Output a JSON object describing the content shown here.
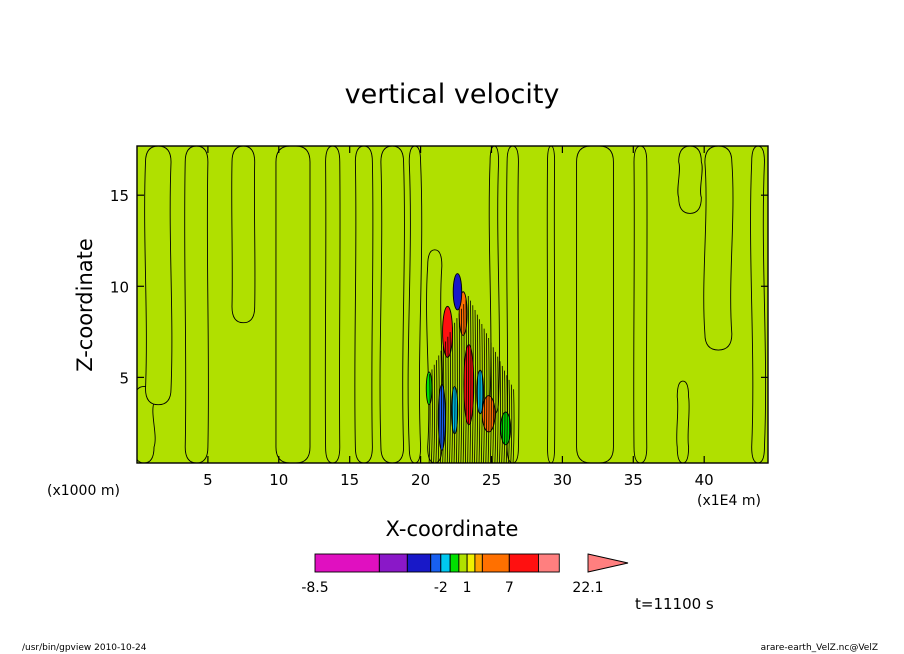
{
  "chart_data": {
    "type": "heatmap",
    "title": "vertical velocity",
    "xlabel": "X-coordinate",
    "ylabel": "Z-coordinate",
    "x_multiplier": "(x1000 m)",
    "x_tick_multiplier": "(x1E4 m)",
    "xlim": [
      0,
      44.5
    ],
    "ylim": [
      0.3,
      17.7
    ],
    "x_ticks": [
      5,
      10,
      15,
      20,
      25,
      30,
      35,
      40
    ],
    "y_ticks": [
      5,
      10,
      15
    ],
    "colorbar": {
      "levels": [
        -8.5,
        -6.8,
        -5.0,
        -3.0,
        -2.0,
        -1.0,
        0.0,
        1.0,
        2.0,
        3.0,
        7.0,
        12.0,
        16.0,
        22.1
      ],
      "colors": [
        "#e010c0",
        "#8a18c8",
        "#1818c8",
        "#1860f0",
        "#00c8f0",
        "#00e000",
        "#b0e000",
        "#f0f000",
        "#ffa000",
        "#ff7000",
        "#ff1010",
        "#ff7f7f"
      ],
      "labels": [
        "-8.5",
        "-2",
        "1",
        "7",
        "22.1"
      ],
      "label_values": [
        -8.5,
        -2,
        1,
        7,
        22.1
      ]
    },
    "field": {
      "background_value": 0.0,
      "positive_bands": [
        {
          "x": 0.5,
          "z0": 0.3,
          "z1": 4.5,
          "w": 1.4
        },
        {
          "x": 1.5,
          "z0": 3.5,
          "z1": 17.7,
          "w": 1.8
        },
        {
          "x": 4.2,
          "z0": 0.3,
          "z1": 17.7,
          "w": 1.6
        },
        {
          "x": 7.5,
          "z0": 8.0,
          "z1": 17.7,
          "w": 1.6
        },
        {
          "x": 11.0,
          "z0": 0.3,
          "z1": 17.7,
          "w": 2.4
        },
        {
          "x": 13.8,
          "z0": 0.3,
          "z1": 17.7,
          "w": 1.0
        },
        {
          "x": 16.0,
          "z0": 0.3,
          "z1": 17.7,
          "w": 1.2
        },
        {
          "x": 18.0,
          "z0": 0.3,
          "z1": 17.7,
          "w": 1.6
        },
        {
          "x": 19.6,
          "z0": 0.3,
          "z1": 17.7,
          "w": 0.8
        },
        {
          "x": 21.0,
          "z0": 0.3,
          "z1": 12.0,
          "w": 1.0
        },
        {
          "x": 25.2,
          "z0": 3.0,
          "z1": 17.7,
          "w": 0.6
        },
        {
          "x": 26.5,
          "z0": 0.3,
          "z1": 17.7,
          "w": 0.8
        },
        {
          "x": 29.2,
          "z0": 0.3,
          "z1": 17.7,
          "w": 0.5
        },
        {
          "x": 32.3,
          "z0": 0.3,
          "z1": 17.7,
          "w": 2.6
        },
        {
          "x": 35.5,
          "z0": 0.3,
          "z1": 17.7,
          "w": 0.9
        },
        {
          "x": 38.5,
          "z0": 0.3,
          "z1": 4.8,
          "w": 0.8
        },
        {
          "x": 39.0,
          "z0": 14.0,
          "z1": 17.7,
          "w": 1.6
        },
        {
          "x": 41.0,
          "z0": 6.5,
          "z1": 17.7,
          "w": 1.9
        },
        {
          "x": 43.8,
          "z0": 0.3,
          "z1": 17.7,
          "w": 0.9
        }
      ],
      "storm_cells": [
        {
          "x": 21.9,
          "z": 7.5,
          "dx": 0.35,
          "dz": 1.4,
          "v": 7.0
        },
        {
          "x": 23.4,
          "z": 4.6,
          "dx": 0.35,
          "dz": 2.2,
          "v": 7.0
        },
        {
          "x": 23.0,
          "z": 8.5,
          "dx": 0.28,
          "dz": 1.2,
          "v": 3.0
        },
        {
          "x": 24.8,
          "z": 3.0,
          "dx": 0.45,
          "dz": 1.0,
          "v": 3.0
        },
        {
          "x": 22.6,
          "z": 9.7,
          "dx": 0.3,
          "dz": 1.0,
          "v": -5.0
        },
        {
          "x": 21.5,
          "z": 2.8,
          "dx": 0.25,
          "dz": 1.8,
          "v": -3.0
        },
        {
          "x": 22.4,
          "z": 3.2,
          "dx": 0.22,
          "dz": 1.3,
          "v": -2.0
        },
        {
          "x": 24.2,
          "z": 4.2,
          "dx": 0.24,
          "dz": 1.2,
          "v": -2.0
        },
        {
          "x": 20.6,
          "z": 4.4,
          "dx": 0.2,
          "dz": 0.9,
          "v": -1.0
        },
        {
          "x": 26.0,
          "z": 2.2,
          "dx": 0.35,
          "dz": 0.9,
          "v": -1.0
        }
      ]
    }
  },
  "time_label": "t=11100 s",
  "footer_left": "/usr/bin/gpview  2010-10-24",
  "footer_right": "arare-earth_VelZ.nc@VelZ"
}
